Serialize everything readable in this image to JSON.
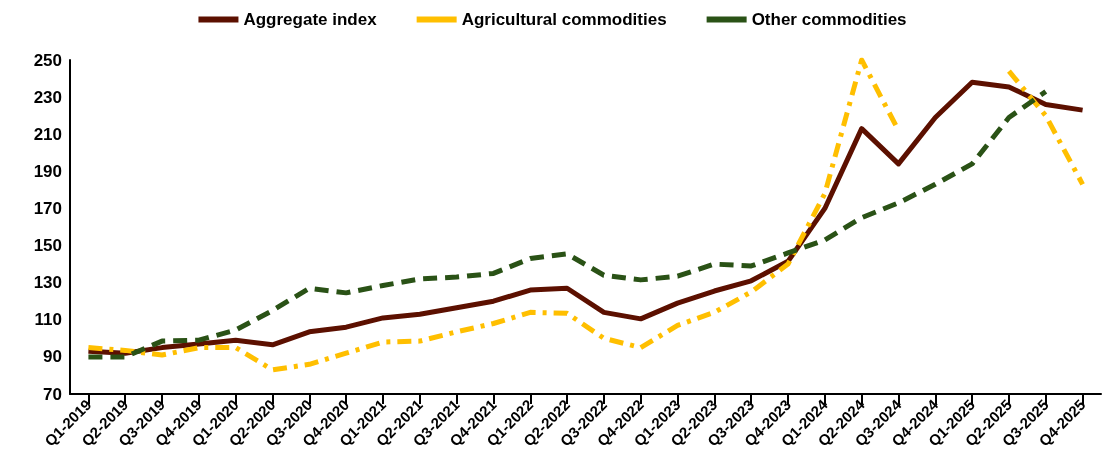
{
  "chart_data": {
    "type": "line",
    "categories": [
      "Q1-2019",
      "Q2-2019",
      "Q3-2019",
      "Q4-2019",
      "Q1-2020",
      "Q2-2020",
      "Q3-2020",
      "Q4-2020",
      "Q1-2021",
      "Q2-2021",
      "Q3-2021",
      "Q4-2021",
      "Q1-2022",
      "Q2-2022",
      "Q3-2022",
      "Q4-2022",
      "Q1-2023",
      "Q2-2023",
      "Q3-2023",
      "Q4-2023",
      "Q1-2024",
      "Q2-2024",
      "Q3-2024",
      "Q4-2024",
      "Q1-2025",
      "Q2-2025",
      "Q3-2025",
      "Q4-2025"
    ],
    "series": [
      {
        "name": "Aggregate index",
        "color": "#5c1000",
        "line_style": "solid",
        "values": [
          93,
          92,
          95,
          97,
          99,
          96.5,
          103.5,
          106,
          111,
          113,
          116.5,
          120,
          126,
          127,
          114,
          110.5,
          119,
          125.5,
          131,
          141.5,
          170,
          213,
          194,
          219,
          238,
          235.5,
          226,
          223
        ]
      },
      {
        "name": "Agricultural commodities",
        "color": "#ffbf00",
        "line_style": "dashdot",
        "values": [
          95,
          93.5,
          91,
          95,
          95,
          83,
          86,
          92,
          98,
          98.5,
          103.5,
          108,
          114,
          113.5,
          100,
          95,
          107,
          114,
          125,
          140,
          178,
          250,
          212,
          null,
          null,
          244,
          220,
          183
        ]
      },
      {
        "name": "Other commodities",
        "color": "#2a5216",
        "line_style": "dashed",
        "values": [
          90,
          90,
          98.5,
          99,
          104.5,
          115,
          127,
          124.5,
          128.5,
          132,
          133,
          135,
          143,
          145.5,
          134,
          131.5,
          133.5,
          140,
          139,
          146,
          153,
          165,
          173,
          183,
          194,
          219,
          233,
          null
        ]
      }
    ],
    "ylim": [
      70,
      250
    ],
    "yticks": [
      70,
      90,
      110,
      130,
      150,
      170,
      190,
      210,
      230,
      250
    ],
    "grid": false,
    "legend": "top",
    "marker": "none"
  }
}
